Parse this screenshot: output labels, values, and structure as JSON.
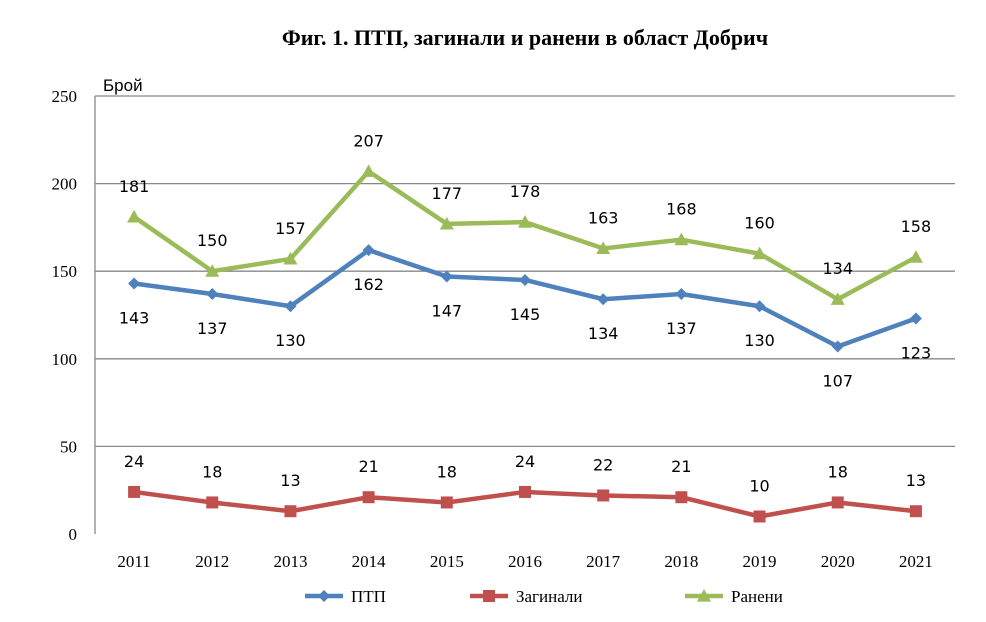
{
  "chart_data": {
    "type": "line",
    "title": "Фиг. 1. ПТП, загинали и ранени в област Добрич",
    "ylabel": "Брой",
    "xlabel": "",
    "categories": [
      "2011",
      "2012",
      "2013",
      "2014",
      "2015",
      "2016",
      "2017",
      "2018",
      "2019",
      "2020",
      "2021"
    ],
    "ylim": [
      0,
      250
    ],
    "yticks": [
      0,
      50,
      100,
      150,
      200,
      250
    ],
    "grid": true,
    "legend_position": "bottom",
    "series": [
      {
        "name": "ПТП",
        "color": "#4F81BD",
        "marker": "diamond",
        "label_position": "below",
        "values": [
          143,
          137,
          130,
          162,
          147,
          145,
          134,
          137,
          130,
          107,
          123
        ]
      },
      {
        "name": "Загинали",
        "color": "#C0504D",
        "marker": "square",
        "label_position": "above",
        "values": [
          24,
          18,
          13,
          21,
          18,
          24,
          22,
          21,
          10,
          18,
          13
        ]
      },
      {
        "name": "Ранени",
        "color": "#9BBB59",
        "marker": "triangle",
        "label_position": "above",
        "values": [
          181,
          150,
          157,
          207,
          177,
          178,
          163,
          168,
          160,
          134,
          158
        ]
      }
    ]
  }
}
